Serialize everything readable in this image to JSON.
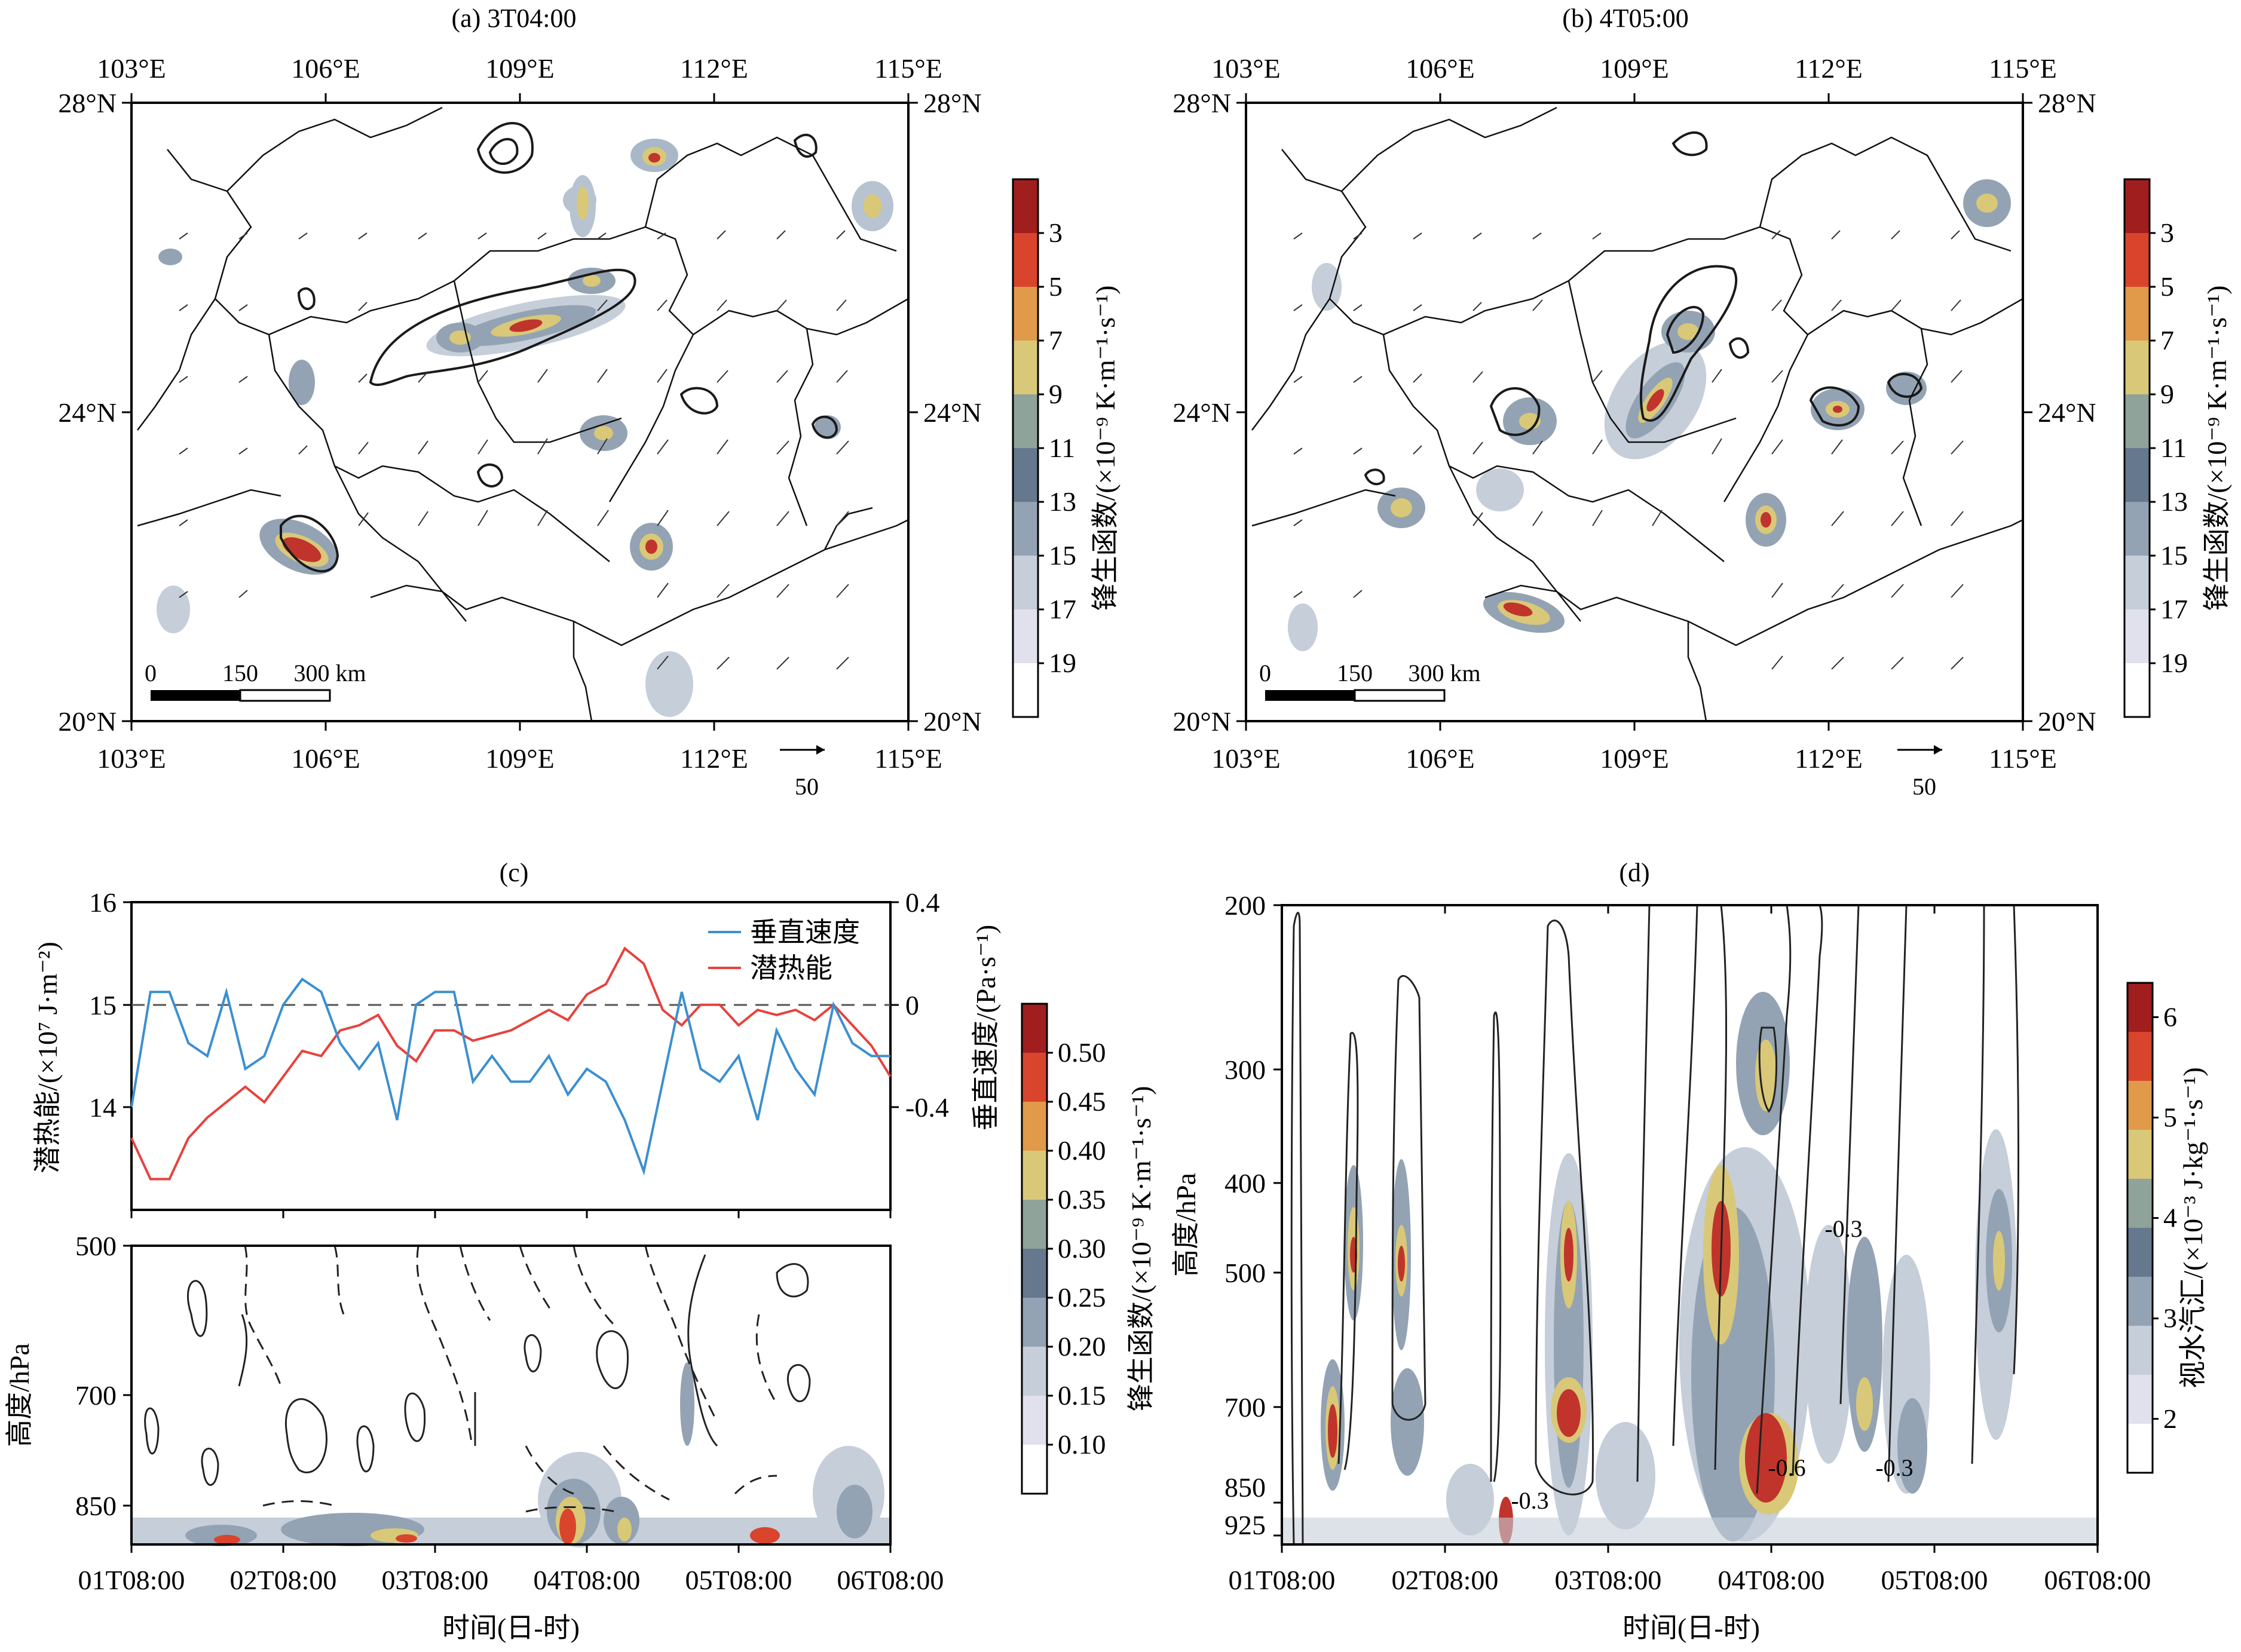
{
  "panels": {
    "a": {
      "title": "(a) 3T04:00"
    },
    "b": {
      "title": "(b) 4T05:00"
    },
    "c": {
      "title": "(c)"
    },
    "d": {
      "title": "(d)"
    }
  },
  "maps": {
    "lon_ticks": [
      "103°E",
      "106°E",
      "109°E",
      "112°E",
      "115°E"
    ],
    "lat_ticks": [
      "28°N",
      "24°N",
      "20°N"
    ],
    "scalebar": {
      "labels": [
        "0",
        "150",
        "300 km"
      ]
    },
    "ref_vector": {
      "label": "50"
    },
    "colorbar": {
      "label": "锋生函数/(×10⁻⁹ K·m⁻¹·s⁻¹)",
      "ticks": [
        "3",
        "5",
        "7",
        "9",
        "11",
        "13",
        "15",
        "17",
        "19"
      ]
    }
  },
  "panel_c": {
    "legend": [
      "垂直速度",
      "潜热能"
    ],
    "left_axis": {
      "label": "潜热能/(×10⁷ J·m⁻²)",
      "ticks": [
        "16",
        "15",
        "14"
      ]
    },
    "right_axis": {
      "label": "垂直速度/(Pa·s⁻¹)",
      "ticks": [
        "0.4",
        "0",
        "-0.4"
      ]
    },
    "lower_axis": {
      "label": "高度/hPa",
      "ticks": [
        "500",
        "700",
        "850"
      ]
    },
    "colorbar": {
      "label": "锋生函数/(×10⁻⁹ K·m⁻¹·s⁻¹)",
      "ticks": [
        "0.50",
        "0.45",
        "0.40",
        "0.35",
        "0.30",
        "0.25",
        "0.20",
        "0.15",
        "0.10"
      ]
    }
  },
  "panel_d": {
    "y_axis": {
      "label": "高度/hPa",
      "ticks": [
        "200",
        "300",
        "400",
        "500",
        "700",
        "850",
        "925"
      ]
    },
    "contour_labels": [
      "-0.3",
      "-0.3",
      "-0.6",
      "-0.3"
    ],
    "colorbar": {
      "label": "视水汽汇/(×10⁻³ J·kg⁻¹·s⁻¹)",
      "ticks": [
        "6",
        "5",
        "4",
        "3",
        "2"
      ]
    }
  },
  "time_axis": {
    "label": "时间(日-时)",
    "ticks": [
      "01T08:00",
      "02T08:00",
      "03T08:00",
      "04T08:00",
      "05T08:00",
      "06T08:00"
    ]
  },
  "chart_data": [
    {
      "type": "line",
      "panel": "c-upper",
      "x_labels": [
        "01T08:00",
        "02T08:00",
        "03T08:00",
        "04T08:00",
        "05T08:00",
        "06T08:00"
      ],
      "x": [
        0,
        3,
        6,
        9,
        12,
        15,
        18,
        21,
        24,
        27,
        30,
        33,
        36,
        39,
        42,
        45,
        48,
        51,
        54,
        57,
        60,
        63,
        66,
        69,
        72,
        75,
        78,
        81,
        84,
        87,
        90,
        93,
        96,
        99,
        102,
        105,
        108,
        111,
        114,
        117,
        120
      ],
      "series": [
        {
          "name": "潜热能",
          "axis": "left",
          "values": [
            13.7,
            13.3,
            13.3,
            13.7,
            13.9,
            14.05,
            14.2,
            14.05,
            14.3,
            14.55,
            14.5,
            14.75,
            14.8,
            14.9,
            14.6,
            14.45,
            14.75,
            14.75,
            14.65,
            14.7,
            14.75,
            14.85,
            14.95,
            14.85,
            15.1,
            15.2,
            15.55,
            15.4,
            14.95,
            14.8,
            15.0,
            15.0,
            14.8,
            14.95,
            14.9,
            14.95,
            14.85,
            15.0,
            14.8,
            14.6,
            14.3
          ]
        },
        {
          "name": "垂直速度",
          "axis": "right",
          "values": [
            -0.4,
            0.05,
            0.05,
            -0.15,
            -0.2,
            0.05,
            -0.25,
            -0.2,
            0.0,
            0.1,
            0.05,
            -0.15,
            -0.25,
            -0.15,
            -0.45,
            0.0,
            0.05,
            0.05,
            -0.3,
            -0.2,
            -0.3,
            -0.3,
            -0.2,
            -0.35,
            -0.25,
            -0.3,
            -0.45,
            -0.65,
            -0.3,
            0.05,
            -0.25,
            -0.3,
            -0.2,
            -0.45,
            -0.1,
            -0.25,
            -0.35,
            0.0,
            -0.15,
            -0.2,
            -0.2
          ]
        }
      ],
      "left_ylim": [
        13,
        16
      ],
      "right_ylim": [
        -0.8,
        0.4
      ],
      "reference_line": 0
    }
  ]
}
